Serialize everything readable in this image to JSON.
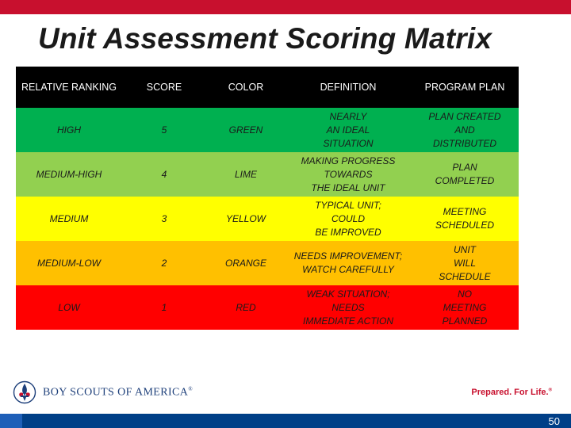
{
  "slide": {
    "title": "Unit Assessment Scoring Matrix",
    "page_number": "50"
  },
  "table": {
    "headers": [
      "RELATIVE RANKING",
      "SCORE",
      "COLOR",
      "DEFINITION",
      "PROGRAM PLAN"
    ],
    "rows": [
      {
        "ranking": "HIGH",
        "score": "5",
        "color": "GREEN",
        "definition": "NEARLY\nAN IDEAL\nSITUATION",
        "plan": "PLAN CREATED\nAND\nDISTRIBUTED",
        "bg": "#00b050"
      },
      {
        "ranking": "MEDIUM-HIGH",
        "score": "4",
        "color": "LIME",
        "definition": "MAKING PROGRESS\nTOWARDS\nTHE IDEAL UNIT",
        "plan": "PLAN\nCOMPLETED",
        "bg": "#92d050"
      },
      {
        "ranking": "MEDIUM",
        "score": "3",
        "color": "YELLOW",
        "definition": "TYPICAL UNIT;\nCOULD\nBE IMPROVED",
        "plan": "MEETING\nSCHEDULED",
        "bg": "#ffff00"
      },
      {
        "ranking": "MEDIUM-LOW",
        "score": "2",
        "color": "ORANGE",
        "definition": "NEEDS IMPROVEMENT;\nWATCH CAREFULLY",
        "plan": "UNIT\nWILL\nSCHEDULE",
        "bg": "#ffc000"
      },
      {
        "ranking": "LOW",
        "score": "1",
        "color": "RED",
        "definition": "WEAK SITUATION;\nNEEDS\nIMMEDIATE ACTION",
        "plan": "NO\nMEETING\nPLANNED",
        "bg": "#ff0000"
      }
    ]
  },
  "footer": {
    "logo_text": "BOY SCOUTS OF AMERICA",
    "logo_mark": "®",
    "tagline": "Prepared. For Life.",
    "tagline_mark": "®"
  },
  "colors": {
    "top_bar": "#c8102e",
    "bottom_bar": "#003f87",
    "header_bg": "#000000"
  }
}
